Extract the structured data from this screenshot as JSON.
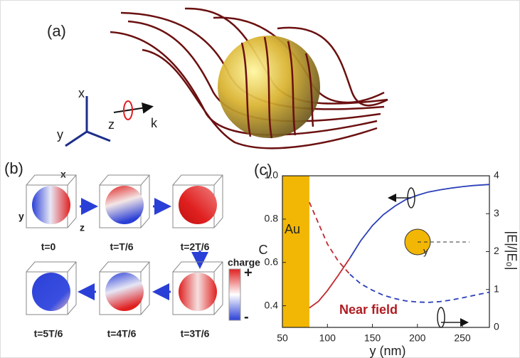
{
  "panel_a": {
    "label": "(a)",
    "axes": [
      "x",
      "y",
      "z"
    ],
    "wave_label": "k"
  },
  "panel_b": {
    "label": "(b)",
    "axes": [
      "x",
      "y",
      "z"
    ],
    "frames": [
      "t=0",
      "t=T/6",
      "t=2T/6",
      "t=3T/6",
      "t=4T/6",
      "t=5T/6"
    ],
    "colorbar_title": "charge",
    "colorbar_max": "+",
    "colorbar_min": "-"
  },
  "chart_data": {
    "type": "line",
    "label": "(c)",
    "xlabel": "y (nm)",
    "ylabel": "C",
    "y2label": "|E|/|E₀|",
    "annotations": [
      "Au",
      "Near field",
      "y"
    ],
    "au_region": [
      50,
      80
    ],
    "au_color": "#f2b705",
    "x": [
      80,
      90,
      100,
      112,
      125,
      137,
      150,
      162,
      175,
      187,
      200,
      212,
      225,
      237,
      250,
      262,
      280
    ],
    "series": [
      {
        "color": "#c0282d",
        "dash": false,
        "values": [
          0.39,
          0.42,
          0.47,
          0.54,
          0.62,
          null,
          null,
          null,
          null,
          null,
          null,
          null,
          null,
          null,
          null,
          null,
          null
        ]
      },
      {
        "color": "#2b3fb8",
        "dash": false,
        "values": [
          null,
          null,
          null,
          null,
          0.62,
          0.7,
          0.77,
          0.82,
          0.86,
          0.89,
          0.91,
          0.925,
          0.935,
          0.943,
          0.95,
          0.955,
          0.96
        ]
      },
      {
        "color": "#c0282d",
        "dash": true,
        "axis": "y2",
        "values": [
          3.3,
          2.75,
          2.2,
          1.75,
          1.4,
          null,
          null,
          null,
          null,
          null,
          null,
          null,
          null,
          null,
          null,
          null,
          null
        ]
      },
      {
        "color": "#2b3fb8",
        "dash": true,
        "axis": "y2",
        "values": [
          null,
          null,
          null,
          null,
          1.4,
          1.15,
          0.98,
          0.85,
          0.76,
          0.7,
          0.67,
          0.66,
          0.68,
          0.72,
          0.78,
          0.84,
          0.93
        ]
      }
    ],
    "xlim": [
      50,
      280
    ],
    "xticks": [
      50,
      100,
      150,
      200,
      250
    ],
    "ylim": [
      0.3,
      1.0
    ],
    "yticks": [
      0.4,
      0.6,
      0.8,
      {
        "value": 1.0,
        "label": "1.0"
      }
    ],
    "y2lim": [
      0,
      4
    ],
    "y2ticks": [
      0,
      1,
      2,
      3,
      4
    ]
  }
}
